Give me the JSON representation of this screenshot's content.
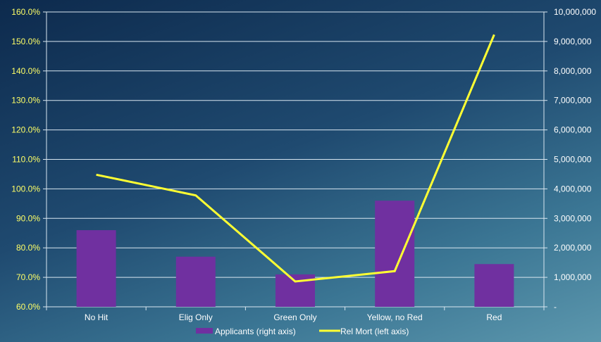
{
  "chart_data": {
    "type": "bar+line",
    "title": "",
    "categories": [
      "No Hit",
      "Elig Only",
      "Green Only",
      "Yellow, no Red",
      "Red"
    ],
    "series": [
      {
        "name": "Applicants (right axis)",
        "kind": "bar",
        "axis": "right",
        "color": "#7030a0",
        "values": [
          2600000,
          1700000,
          1100000,
          3600000,
          1450000
        ]
      },
      {
        "name": "Rel Mort (left axis)",
        "kind": "line",
        "axis": "left",
        "color": "#ffff33",
        "values": [
          104.8,
          97.8,
          68.6,
          72.1,
          152.3
        ]
      }
    ],
    "left_axis": {
      "min": 60,
      "max": 160,
      "step": 10,
      "tick_labels": [
        "60.0%",
        "70.0%",
        "80.0%",
        "90.0%",
        "100.0%",
        "110.0%",
        "120.0%",
        "130.0%",
        "140.0%",
        "150.0%",
        "160.0%"
      ]
    },
    "right_axis": {
      "min": 0,
      "max": 10000000,
      "step": 1000000,
      "tick_labels": [
        "-",
        "1,000,000",
        "2,000,000",
        "3,000,000",
        "4,000,000",
        "5,000,000",
        "6,000,000",
        "7,000,000",
        "8,000,000",
        "9,000,000",
        "10,000,000"
      ]
    },
    "grid": true,
    "legend_position": "bottom"
  }
}
